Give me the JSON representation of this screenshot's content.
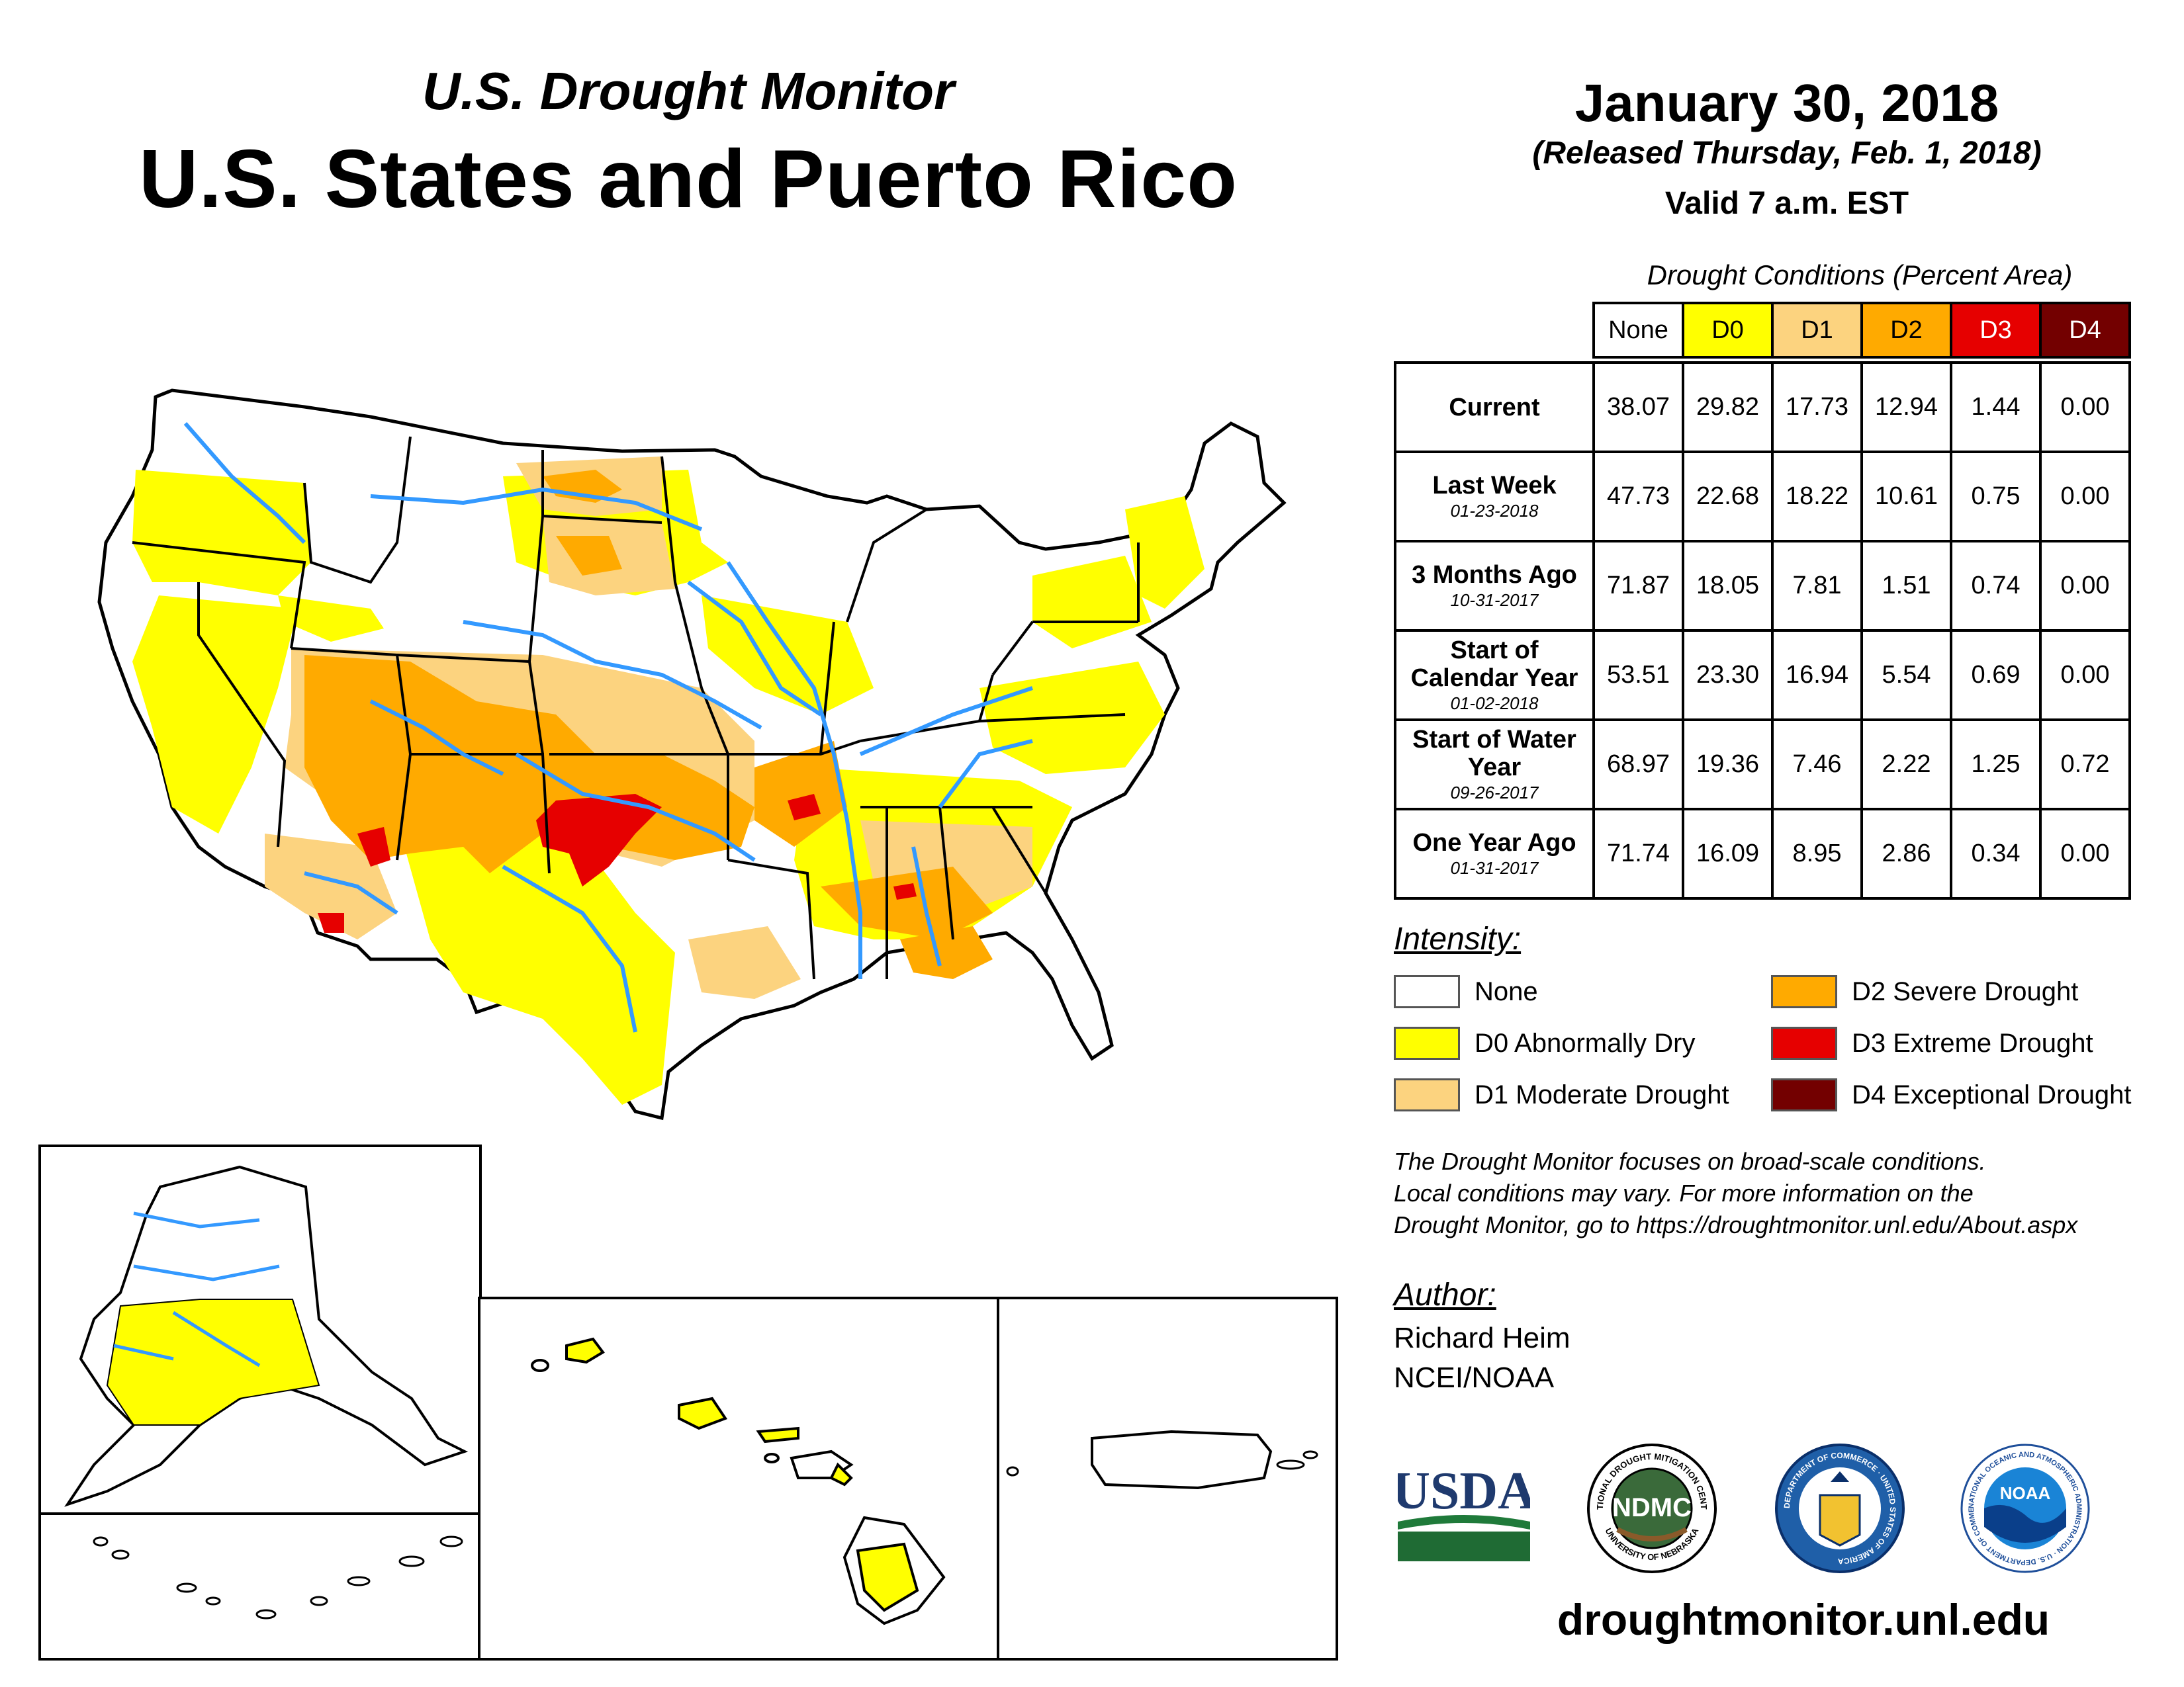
{
  "header": {
    "subtitle": "U.S. Drought Monitor",
    "title": "U.S. States and Puerto Rico",
    "date": "January 30, 2018",
    "released": "(Released Thursday, Feb. 1, 2018)",
    "valid": "Valid 7 a.m. EST"
  },
  "table": {
    "caption": "Drought Conditions (Percent Area)",
    "columns": [
      "None",
      "D0",
      "D1",
      "D2",
      "D3",
      "D4"
    ],
    "column_colors": [
      "#ffffff",
      "#ffff00",
      "#fcd37f",
      "#ffaa00",
      "#e60000",
      "#730000"
    ],
    "rows": [
      {
        "label": "Current",
        "date": "",
        "values": [
          "38.07",
          "29.82",
          "17.73",
          "12.94",
          "1.44",
          "0.00"
        ]
      },
      {
        "label": "Last Week",
        "date": "01-23-2018",
        "values": [
          "47.73",
          "22.68",
          "18.22",
          "10.61",
          "0.75",
          "0.00"
        ]
      },
      {
        "label": "3 Months Ago",
        "date": "10-31-2017",
        "values": [
          "71.87",
          "18.05",
          "7.81",
          "1.51",
          "0.74",
          "0.00"
        ]
      },
      {
        "label": "Start of Calendar Year",
        "date": "01-02-2018",
        "values": [
          "53.51",
          "23.30",
          "16.94",
          "5.54",
          "0.69",
          "0.00"
        ]
      },
      {
        "label": "Start of Water Year",
        "date": "09-26-2017",
        "values": [
          "68.97",
          "19.36",
          "7.46",
          "2.22",
          "1.25",
          "0.72"
        ]
      },
      {
        "label": "One Year Ago",
        "date": "01-31-2017",
        "values": [
          "71.74",
          "16.09",
          "8.95",
          "2.86",
          "0.34",
          "0.00"
        ]
      }
    ]
  },
  "legend": {
    "title": "Intensity:",
    "items": [
      {
        "label": "None",
        "color": "#ffffff"
      },
      {
        "label": "D0 Abnormally Dry",
        "color": "#ffff00"
      },
      {
        "label": "D1 Moderate Drought",
        "color": "#fcd37f"
      },
      {
        "label": "D2 Severe Drought",
        "color": "#ffaa00"
      },
      {
        "label": "D3 Extreme Drought",
        "color": "#e60000"
      },
      {
        "label": "D4 Exceptional Drought",
        "color": "#730000"
      }
    ]
  },
  "note": {
    "line1": "The Drought Monitor focuses on broad-scale conditions.",
    "line2": "Local conditions may vary. For more information on the",
    "line3": "Drought Monitor, go to https://droughtmonitor.unl.edu/About.aspx"
  },
  "author": {
    "label": "Author:",
    "name": "Richard Heim",
    "org": "NCEI/NOAA"
  },
  "logos": {
    "usda": "USDA",
    "ndmc": "NDMC",
    "ndmc_ring_top": "NATIONAL DROUGHT MITIGATION CENTER",
    "ndmc_ring_bottom": "UNIVERSITY OF NEBRASKA",
    "commerce_ring": "DEPARTMENT OF COMMERCE · UNITED STATES OF AMERICA",
    "noaa": "NOAA",
    "noaa_ring": "NATIONAL OCEANIC AND ATMOSPHERIC ADMINISTRATION · U.S. DEPARTMENT OF COMMERCE"
  },
  "website": "droughtmonitor.unl.edu",
  "map": {
    "river_color": "#3399ff",
    "drought_colors": {
      "D0": "#ffff00",
      "D1": "#fcd37f",
      "D2": "#ffaa00",
      "D3": "#e60000"
    }
  }
}
